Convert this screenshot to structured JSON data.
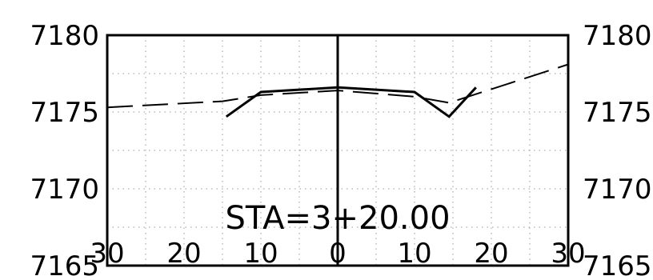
{
  "chart_data": {
    "type": "line",
    "title": "STA=3+20.00",
    "xlabel": "",
    "ylabel": "",
    "xlim": [
      -30,
      30
    ],
    "ylim": [
      7165,
      7180
    ],
    "x_tick_labels": [
      "30",
      "20",
      "10",
      "0",
      "10",
      "20",
      "30"
    ],
    "x_ticks": [
      -30,
      -20,
      -10,
      0,
      10,
      20,
      30
    ],
    "y_ticks": [
      7165,
      7170,
      7175,
      7180
    ],
    "y_tick_labels": [
      "7165",
      "7170",
      "7175",
      "7180"
    ],
    "grid": true,
    "centerline_x": 0,
    "series": [
      {
        "style": "solid",
        "points": [
          [
            -14.5,
            7174.7
          ],
          [
            -10.0,
            7176.3
          ],
          [
            0.0,
            7176.6
          ],
          [
            10.0,
            7176.3
          ],
          [
            14.5,
            7174.7
          ],
          [
            18.0,
            7176.6
          ]
        ]
      },
      {
        "style": "dashed",
        "points": [
          [
            -30.0,
            7175.3
          ],
          [
            -15.0,
            7175.7
          ],
          [
            -10.0,
            7176.1
          ],
          [
            0.0,
            7176.4
          ],
          [
            10.0,
            7176.0
          ],
          [
            14.5,
            7175.6
          ],
          [
            30.0,
            7178.1
          ]
        ]
      }
    ],
    "colors": {
      "axis": "#000000",
      "grid": "#9a9a9a",
      "line": "#000000"
    }
  }
}
